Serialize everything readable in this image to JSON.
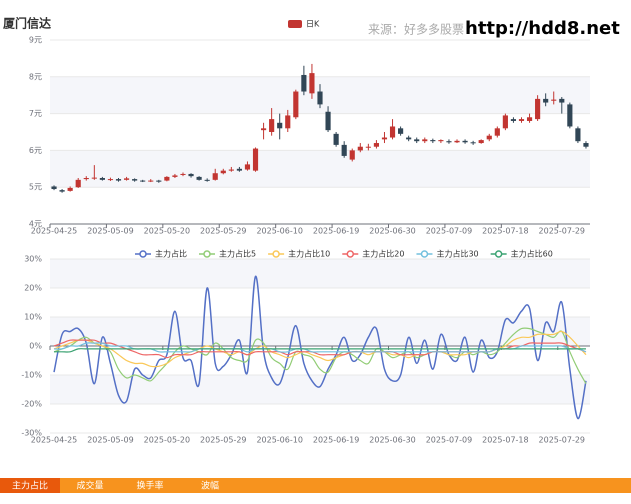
{
  "chart_data": [
    {
      "type": "candlestick",
      "title": "厦门信达",
      "annotations": [
        "来源：好多多股票",
        "http://hdd8.net"
      ],
      "categories": [
        "2025-04-25",
        null,
        null,
        null,
        null,
        null,
        null,
        "2025-05-09",
        null,
        null,
        null,
        null,
        null,
        null,
        "2025-05-20",
        null,
        null,
        null,
        null,
        null,
        null,
        "2025-05-29",
        null,
        null,
        null,
        null,
        null,
        null,
        "2025-06-10",
        null,
        null,
        null,
        null,
        null,
        null,
        "2025-06-19",
        null,
        null,
        null,
        null,
        null,
        null,
        "2025-06-30",
        null,
        null,
        null,
        null,
        null,
        null,
        "2025-07-09",
        null,
        null,
        null,
        null,
        null,
        null,
        "2025-07-18",
        null,
        null,
        null,
        null,
        null,
        null,
        "2025-07-29",
        null,
        null,
        null
      ],
      "series": [
        {
          "name": "日K",
          "color": "#c23531",
          "up_color": "#c23531",
          "down_color": "#314656",
          "values": [
            [
              5.02,
              4.95,
              4.92,
              5.05
            ],
            [
              4.92,
              4.88,
              4.85,
              4.95
            ],
            [
              4.9,
              4.98,
              4.88,
              5.02
            ],
            [
              5.0,
              5.2,
              4.98,
              5.25
            ],
            [
              5.22,
              5.25,
              5.18,
              5.3
            ],
            [
              5.25,
              5.26,
              5.2,
              5.6
            ],
            [
              5.25,
              5.2,
              5.18,
              5.28
            ],
            [
              5.2,
              5.22,
              5.17,
              5.26
            ],
            [
              5.22,
              5.18,
              5.15,
              5.25
            ],
            [
              5.2,
              5.24,
              5.18,
              5.28
            ],
            [
              5.22,
              5.18,
              5.15,
              5.24
            ],
            [
              5.18,
              5.17,
              5.14,
              5.2
            ],
            [
              5.16,
              5.18,
              5.14,
              5.22
            ],
            [
              5.18,
              5.15,
              5.12,
              5.2
            ],
            [
              5.18,
              5.28,
              5.16,
              5.3
            ],
            [
              5.28,
              5.32,
              5.25,
              5.36
            ],
            [
              5.34,
              5.36,
              5.3,
              5.4
            ],
            [
              5.36,
              5.3,
              5.26,
              5.38
            ],
            [
              5.28,
              5.2,
              5.18,
              5.3
            ],
            [
              5.2,
              5.18,
              5.15,
              5.24
            ],
            [
              5.2,
              5.38,
              5.18,
              5.5
            ],
            [
              5.38,
              5.45,
              5.35,
              5.5
            ],
            [
              5.45,
              5.48,
              5.42,
              5.55
            ],
            [
              5.5,
              5.45,
              5.42,
              5.55
            ],
            [
              5.48,
              5.62,
              5.45,
              5.7
            ],
            [
              5.45,
              6.05,
              5.42,
              6.08
            ],
            [
              6.55,
              6.6,
              6.3,
              6.75
            ],
            [
              6.5,
              6.85,
              6.4,
              7.15
            ],
            [
              6.75,
              6.6,
              6.3,
              7.0
            ],
            [
              6.6,
              6.95,
              6.5,
              7.1
            ],
            [
              6.9,
              7.6,
              6.85,
              7.65
            ],
            [
              8.05,
              7.6,
              7.5,
              8.3
            ],
            [
              7.55,
              8.1,
              7.4,
              8.35
            ],
            [
              7.6,
              7.25,
              7.15,
              7.8
            ],
            [
              7.05,
              6.55,
              6.5,
              7.2
            ],
            [
              6.45,
              6.15,
              6.1,
              6.5
            ],
            [
              6.15,
              5.85,
              5.8,
              6.25
            ],
            [
              5.75,
              6.0,
              5.7,
              6.05
            ],
            [
              6.0,
              6.1,
              5.95,
              6.2
            ],
            [
              6.08,
              6.1,
              6.0,
              6.18
            ],
            [
              6.1,
              6.2,
              6.05,
              6.28
            ],
            [
              6.3,
              6.35,
              6.2,
              6.5
            ],
            [
              6.35,
              6.65,
              6.3,
              6.85
            ],
            [
              6.6,
              6.45,
              6.4,
              6.65
            ],
            [
              6.35,
              6.3,
              6.25,
              6.4
            ],
            [
              6.3,
              6.25,
              6.2,
              6.35
            ],
            [
              6.25,
              6.3,
              6.2,
              6.35
            ],
            [
              6.28,
              6.25,
              6.2,
              6.32
            ],
            [
              6.25,
              6.28,
              6.2,
              6.3
            ],
            [
              6.25,
              6.22,
              6.18,
              6.3
            ],
            [
              6.22,
              6.26,
              6.2,
              6.3
            ],
            [
              6.26,
              6.22,
              6.18,
              6.3
            ],
            [
              6.22,
              6.2,
              6.15,
              6.26
            ],
            [
              6.2,
              6.28,
              6.18,
              6.3
            ],
            [
              6.3,
              6.4,
              6.25,
              6.45
            ],
            [
              6.4,
              6.6,
              6.35,
              6.65
            ],
            [
              6.6,
              6.95,
              6.55,
              7.0
            ],
            [
              6.85,
              6.8,
              6.75,
              6.9
            ],
            [
              6.8,
              6.85,
              6.75,
              6.9
            ],
            [
              6.8,
              6.9,
              6.75,
              7.0
            ],
            [
              6.85,
              7.4,
              6.8,
              7.5
            ],
            [
              7.4,
              7.3,
              7.2,
              7.55
            ],
            [
              7.35,
              7.38,
              7.25,
              7.6
            ],
            [
              7.4,
              7.3,
              7.0,
              7.45
            ],
            [
              7.25,
              6.65,
              6.6,
              7.3
            ],
            [
              6.6,
              6.25,
              6.2,
              6.65
            ],
            [
              6.2,
              6.1,
              6.05,
              6.25
            ]
          ]
        }
      ],
      "ylim": [
        4,
        9
      ],
      "yticks": [
        {
          "value": 4,
          "label": "4元"
        },
        {
          "value": 5,
          "label": "5元"
        },
        {
          "value": 6,
          "label": "6元"
        },
        {
          "value": 7,
          "label": "7元"
        },
        {
          "value": 8,
          "label": "8元"
        },
        {
          "value": 9,
          "label": "9元"
        }
      ],
      "grid": true,
      "split_area": true
    },
    {
      "type": "line",
      "smooth": true,
      "categories": [
        "2025-04-25",
        null,
        null,
        null,
        null,
        null,
        null,
        "2025-05-09",
        null,
        null,
        null,
        null,
        null,
        null,
        "2025-05-20",
        null,
        null,
        null,
        null,
        null,
        null,
        "2025-05-29",
        null,
        null,
        null,
        null,
        null,
        null,
        "2025-06-10",
        null,
        null,
        null,
        null,
        null,
        null,
        "2025-06-19",
        null,
        null,
        null,
        null,
        null,
        null,
        "2025-06-30",
        null,
        null,
        null,
        null,
        null,
        null,
        "2025-07-09",
        null,
        null,
        null,
        null,
        null,
        null,
        "2025-07-18",
        null,
        null,
        null,
        null,
        null,
        null,
        "2025-07-29",
        null,
        null,
        null
      ],
      "series": [
        {
          "name": "主力占比",
          "color": "#5470c6",
          "values": [
            -9,
            4,
            5,
            6,
            1,
            -13,
            3,
            -6,
            -17,
            -19,
            -8,
            -10,
            -11,
            -5,
            -3,
            12,
            -4,
            -5,
            -13,
            20,
            -6,
            -7,
            -3,
            2,
            -9,
            24,
            -2,
            -11,
            -13,
            -4,
            7,
            -6,
            -12,
            -14,
            -8,
            -3,
            3,
            -5,
            -3,
            3,
            6,
            -8,
            -12,
            -10,
            3,
            -6,
            2,
            -8,
            4,
            -3,
            -5,
            3,
            -9,
            2,
            -4,
            -2,
            9,
            8,
            12,
            13,
            -5,
            8,
            5,
            15,
            -8,
            -25,
            -12
          ]
        },
        {
          "name": "主力占比5",
          "color": "#91cc75",
          "values": [
            -2,
            -1,
            0,
            2,
            3,
            1,
            0,
            -2,
            -8,
            -11,
            -10,
            -11,
            -12,
            -9,
            -6,
            -2,
            0,
            -1,
            -2,
            -3,
            1,
            -1,
            -4,
            -5,
            -5,
            2,
            1,
            -4,
            -6,
            -8,
            -2,
            -3,
            -4,
            -8,
            -9,
            -4,
            -2,
            -3,
            -5,
            -6,
            -1,
            -2,
            -4,
            -3,
            -2,
            -4,
            -3,
            -2,
            -2,
            -3,
            -4,
            -2,
            -3,
            -2,
            -3,
            -2,
            1,
            4,
            6,
            6,
            5,
            4,
            3,
            5,
            -2,
            -8,
            -13
          ]
        },
        {
          "name": "主力占比10",
          "color": "#fac858",
          "values": [
            -1,
            0,
            1,
            2,
            2,
            1,
            0,
            -1,
            -3,
            -5,
            -6,
            -6,
            -7,
            -7,
            -6,
            -4,
            -3,
            -2,
            -1,
            0,
            -1,
            -2,
            -3,
            -2,
            -3,
            -1,
            0,
            -2,
            -3,
            -4,
            -3,
            -2,
            -3,
            -4,
            -5,
            -4,
            -3,
            -2,
            -2,
            -3,
            -2,
            -2,
            -3,
            -3,
            -4,
            -3,
            -3,
            -2,
            -2,
            -3,
            -3,
            -3,
            -2,
            -2,
            -2,
            -1,
            0,
            2,
            3,
            3,
            4,
            4,
            4,
            5,
            3,
            0,
            -3
          ]
        },
        {
          "name": "主力占比20",
          "color": "#ee6666",
          "values": [
            0,
            1,
            2,
            2,
            2,
            2,
            1,
            1,
            0,
            -1,
            -2,
            -3,
            -3,
            -3,
            -4,
            -3,
            -3,
            -3,
            -2,
            -2,
            -2,
            -2,
            -2,
            -2,
            -3,
            -2,
            -2,
            -2,
            -2,
            -3,
            -2,
            -2,
            -2,
            -3,
            -3,
            -3,
            -3,
            -2,
            -2,
            -2,
            -2,
            -2,
            -2,
            -3,
            -3,
            -3,
            -3,
            -2,
            -2,
            -2,
            -2,
            -2,
            -2,
            -2,
            -2,
            -1,
            -1,
            0,
            0,
            1,
            1,
            1,
            1,
            1,
            0,
            -1,
            -2
          ]
        },
        {
          "name": "主力占比30",
          "color": "#73c0de",
          "values": [
            -1,
            -1,
            0,
            0,
            1,
            1,
            1,
            0,
            0,
            0,
            -1,
            -1,
            -1,
            -2,
            -2,
            -2,
            -2,
            -2,
            -1,
            -1,
            -1,
            -1,
            -1,
            -1,
            -2,
            -1,
            -1,
            -1,
            -2,
            -2,
            -1,
            -1,
            -2,
            -2,
            -2,
            -2,
            -2,
            -2,
            -2,
            -2,
            -2,
            -2,
            -2,
            -2,
            -2,
            -2,
            -2,
            -2,
            -2,
            -2,
            -2,
            -2,
            -2,
            -2,
            -2,
            -1,
            -1,
            -1,
            0,
            0,
            0,
            0,
            0,
            0,
            -1,
            -1,
            -2
          ]
        },
        {
          "name": "主力占比60",
          "color": "#3ba272",
          "values": [
            -2,
            -2,
            -2,
            -1,
            -1,
            -1,
            -1,
            -1,
            -1,
            -1,
            -1,
            -1,
            -1,
            -1,
            -1,
            -1,
            -1,
            -1,
            -1,
            -1,
            -1,
            -1,
            -1,
            -1,
            -1,
            -1,
            -1,
            -1,
            -1,
            -1,
            -1,
            -1,
            -1,
            -1,
            -1,
            -1,
            -1,
            -1,
            -1,
            -1,
            -1,
            -1,
            -1,
            -1,
            -1,
            -1,
            -1,
            -1,
            -1,
            -1,
            -1,
            -1,
            -1,
            -1,
            -1,
            -1,
            -1,
            -1,
            -1,
            -1,
            -1,
            -1,
            -1,
            -1,
            -1,
            -1,
            -1
          ]
        }
      ],
      "ylim": [
        -30,
        30
      ],
      "yticks": [
        {
          "value": -30,
          "label": "-30%"
        },
        {
          "value": -20,
          "label": "-20%"
        },
        {
          "value": -10,
          "label": "-10%"
        },
        {
          "value": 0,
          "label": "0%"
        },
        {
          "value": 10,
          "label": "10%"
        },
        {
          "value": 20,
          "label": "20%"
        },
        {
          "value": 30,
          "label": "30%"
        }
      ],
      "grid": true,
      "split_area": true
    }
  ],
  "tabs": {
    "items": [
      "主力占比",
      "成交量",
      "换手率",
      "波幅"
    ],
    "active": 0
  }
}
